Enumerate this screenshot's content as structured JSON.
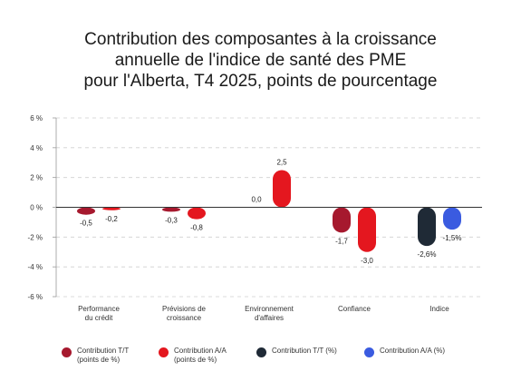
{
  "chart_data": {
    "type": "bar",
    "title_lines": [
      "Contribution des composantes à la croissance",
      "annuelle de l'indice de santé des PME",
      "pour l'Alberta, T4 2025, points de pourcentage"
    ],
    "categories": [
      [
        "Performance",
        "du crédit"
      ],
      [
        "Prévisions de",
        "croissance"
      ],
      [
        "Environnement",
        "d'affaires"
      ],
      [
        "Confiance"
      ],
      [
        "Indice"
      ]
    ],
    "y_ticks": [
      6,
      4,
      2,
      0,
      -2,
      -4,
      -6
    ],
    "y_tick_labels": [
      "6 %",
      "4 %",
      "2 %",
      "0 %",
      "-2 %",
      "-4 %",
      "-6 %"
    ],
    "ylim": [
      -6,
      6
    ],
    "grid": true,
    "legend_position": "bottom",
    "series": [
      {
        "name_lines": [
          "Contribution T/T",
          "(points de %)"
        ],
        "color": "#a6192e",
        "values": [
          -0.5,
          -0.3,
          0.0,
          -1.7,
          null
        ],
        "labels": [
          "-0,5",
          "-0,3",
          "0,0",
          "-1,7",
          ""
        ]
      },
      {
        "name_lines": [
          "Contribution A/A",
          "(points de %)"
        ],
        "color": "#e4171f",
        "values": [
          -0.2,
          -0.8,
          2.5,
          -3.0,
          null
        ],
        "labels": [
          "-0,2",
          "-0,8",
          "2,5",
          "-3,0",
          ""
        ]
      },
      {
        "name_lines": [
          "Contribution T/T (%)"
        ],
        "color": "#1f2a36",
        "values": [
          null,
          null,
          null,
          null,
          -2.6
        ],
        "labels": [
          "",
          "",
          "",
          "",
          "-2,6%"
        ]
      },
      {
        "name_lines": [
          "Contribution A/A (%)"
        ],
        "color": "#3a5be0",
        "values": [
          null,
          null,
          null,
          null,
          -1.5
        ],
        "labels": [
          "",
          "",
          "",
          "",
          "-1,5%"
        ]
      }
    ]
  }
}
